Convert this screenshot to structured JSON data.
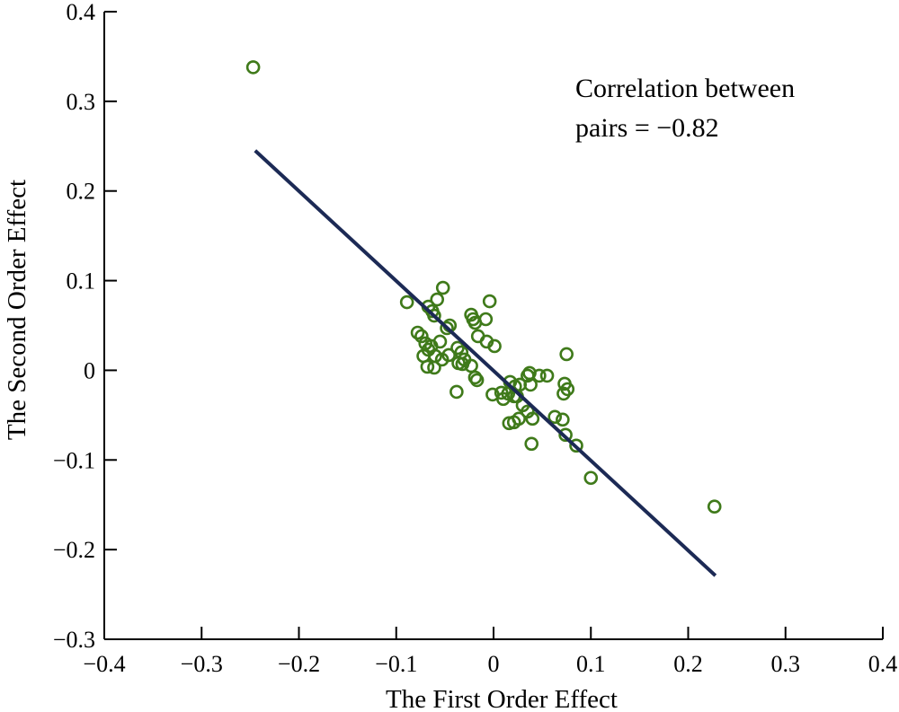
{
  "chart_data": {
    "type": "scatter",
    "xlabel": "The First Order Effect",
    "ylabel": "The Second Order Effect",
    "xlim": [
      -0.4,
      0.4
    ],
    "ylim": [
      -0.3,
      0.4
    ],
    "xticks": [
      "−0.4",
      "−0.3",
      "−0.2",
      "−0.1",
      "0",
      "0.1",
      "0.2",
      "0.3",
      "0.4"
    ],
    "yticks": [
      "−0.3",
      "−0.2",
      "−0.1",
      "0",
      "0.1",
      "0.2",
      "0.3",
      "0.4"
    ],
    "xtick_values": [
      -0.4,
      -0.3,
      -0.2,
      -0.1,
      0,
      0.1,
      0.2,
      0.3,
      0.4
    ],
    "ytick_values": [
      -0.3,
      -0.2,
      -0.1,
      0,
      0.1,
      0.2,
      0.3,
      0.4
    ],
    "annotation": [
      "Correlation between",
      "pairs = −0.82"
    ],
    "grid": false,
    "colors": {
      "points": "#3f7a1a",
      "line": "#1c2a55"
    },
    "fit_line": [
      [
        -0.245,
        0.245
      ],
      [
        0.228,
        -0.229
      ]
    ],
    "points": [
      [
        -0.247,
        0.338
      ],
      [
        -0.089,
        0.076
      ],
      [
        -0.052,
        0.092
      ],
      [
        -0.058,
        0.079
      ],
      [
        -0.004,
        0.077
      ],
      [
        -0.067,
        0.071
      ],
      [
        -0.063,
        0.066
      ],
      [
        -0.061,
        0.061
      ],
      [
        -0.023,
        0.062
      ],
      [
        -0.008,
        0.057
      ],
      [
        -0.021,
        0.057
      ],
      [
        -0.019,
        0.053
      ],
      [
        -0.045,
        0.05
      ],
      [
        -0.048,
        0.047
      ],
      [
        -0.078,
        0.042
      ],
      [
        -0.074,
        0.038
      ],
      [
        -0.016,
        0.038
      ],
      [
        -0.007,
        0.032
      ],
      [
        0.001,
        0.027
      ],
      [
        -0.07,
        0.03
      ],
      [
        -0.064,
        0.027
      ],
      [
        -0.067,
        0.023
      ],
      [
        -0.055,
        0.032
      ],
      [
        -0.06,
        0.016
      ],
      [
        -0.046,
        0.017
      ],
      [
        -0.053,
        0.012
      ],
      [
        -0.037,
        0.025
      ],
      [
        -0.033,
        0.02
      ],
      [
        -0.03,
        0.012
      ],
      [
        -0.036,
        0.008
      ],
      [
        -0.032,
        0.007
      ],
      [
        -0.072,
        0.016
      ],
      [
        -0.068,
        0.004
      ],
      [
        -0.061,
        0.003
      ],
      [
        -0.023,
        0.005
      ],
      [
        -0.019,
        -0.008
      ],
      [
        -0.017,
        -0.011
      ],
      [
        0.075,
        0.018
      ],
      [
        0.037,
        -0.003
      ],
      [
        0.035,
        -0.006
      ],
      [
        0.047,
        -0.006
      ],
      [
        0.055,
        -0.006
      ],
      [
        0.038,
        -0.016
      ],
      [
        0.017,
        -0.013
      ],
      [
        0.022,
        -0.018
      ],
      [
        0.021,
        -0.029
      ],
      [
        0.015,
        -0.026
      ],
      [
        -0.001,
        -0.027
      ],
      [
        0.027,
        -0.016
      ],
      [
        0.024,
        -0.029
      ],
      [
        0.03,
        -0.039
      ],
      [
        0.035,
        -0.046
      ],
      [
        0.04,
        -0.054
      ],
      [
        0.016,
        -0.059
      ],
      [
        0.021,
        -0.058
      ],
      [
        0.026,
        -0.054
      ],
      [
        0.073,
        -0.015
      ],
      [
        0.076,
        -0.021
      ],
      [
        0.072,
        -0.026
      ],
      [
        0.071,
        -0.055
      ],
      [
        0.074,
        -0.072
      ],
      [
        0.063,
        -0.052
      ],
      [
        0.085,
        -0.084
      ],
      [
        0.039,
        -0.082
      ],
      [
        0.1,
        -0.12
      ],
      [
        0.227,
        -0.152
      ],
      [
        -0.038,
        -0.024
      ],
      [
        0.008,
        -0.025
      ],
      [
        0.01,
        -0.032
      ]
    ]
  }
}
